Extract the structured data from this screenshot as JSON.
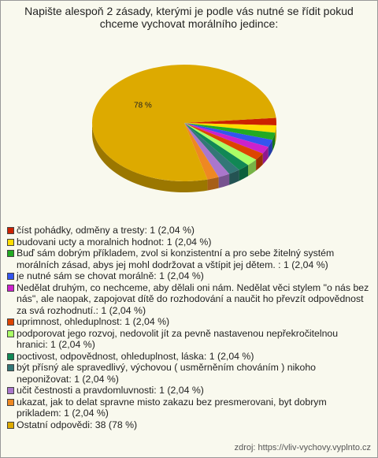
{
  "chart_data": {
    "type": "pie",
    "title": "Napište alespoň 2 zásady, kterými je podle vás nutné se řídit pokud chceme vychovat morálního jedince:",
    "categories": [
      "číst pohádky, odměny a tresty: 1 (2,04 %)",
      "budovani ucty a moralnich hodnot: 1 (2,04 %)",
      "Buď sám dobrým příkladem, zvol si konzistentní a pro sebe žitelný systém morálních zásad, abys jej mohl dodržovat a vštípit jej dětem. : 1 (2,04 %)",
      "je nutné sám se chovat morálně: 1 (2,04 %)",
      "Nedělat druhým, co nechceme, aby dělali oni nám. Nedělat věci stylem \"o nás bez nás\", ale naopak, zapojovat dítě do rozhodování a naučit ho převzít odpovědnost za svá rozhodnutí.: 1 (2,04 %)",
      "uprimnost, ohleduplnost: 1 (2,04 %)",
      "podporovat jego rozvoj, nedovolit jít za pevně nastavenou nepřekročitelnou hranici: 1 (2,04 %)",
      "poctivost, odpovědnost, ohleduplnost, láska: 1 (2,04 %)",
      "být přísný ale spravedlivý, výchovou ( usměrněním chováním ) nikoho neponižovat: 1 (2,04 %)",
      "učit čestnosti a pravdomluvnosti: 1 (2,04 %)",
      "ukazat, jak to delat spravne misto zakazu bez presmerovani, byt dobrym prikladem: 1 (2,04 %)",
      "Ostatní odpovědi: 38 (78 %)"
    ],
    "values": [
      2.04,
      2.04,
      2.04,
      2.04,
      2.04,
      2.04,
      2.04,
      2.04,
      2.04,
      2.04,
      2.04,
      78
    ],
    "value_labels": [
      null,
      null,
      null,
      null,
      null,
      null,
      null,
      null,
      null,
      null,
      null,
      "78 %"
    ],
    "colors": [
      "#cc2200",
      "#ffdd00",
      "#22aa22",
      "#3355ee",
      "#cc22cc",
      "#dd4400",
      "#aaff66",
      "#118855",
      "#337777",
      "#aa77cc",
      "#ee8822",
      "#ddaa00"
    ],
    "source": "zdroj: https://vliv-vychovy.vyplnto.cz"
  }
}
